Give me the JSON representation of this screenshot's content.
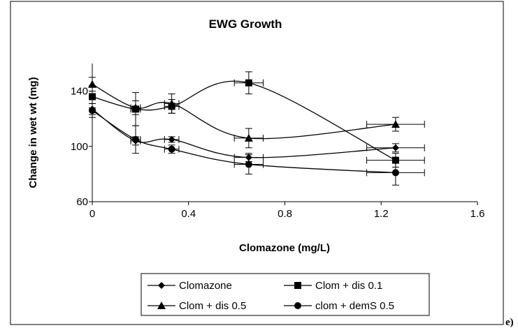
{
  "panel_label": "e)",
  "chart_data": {
    "type": "line",
    "title": "EWG Growth",
    "xlabel": "Clomazone (mg/L)",
    "ylabel": "Change in wet wt (mg)",
    "xlim": [
      0,
      1.6
    ],
    "ylim": [
      60,
      160
    ],
    "x_ticks": [
      0,
      0.4,
      0.8,
      1.2,
      1.6
    ],
    "x_tick_labels": [
      "0",
      "0.4",
      "0.8",
      "1.2",
      "1.6"
    ],
    "y_ticks": [
      60,
      100,
      140
    ],
    "y_tick_labels": [
      "60",
      "100",
      "140"
    ],
    "grid": false,
    "legend_position": "bottom",
    "series": [
      {
        "name": "Clomazone",
        "marker": "diamond",
        "x": [
          0,
          0.18,
          0.33,
          0.65,
          1.26
        ],
        "y": [
          127,
          104,
          105,
          92,
          99
        ],
        "y_err": [
          4,
          3,
          2,
          3,
          3
        ],
        "x_err": [
          0,
          0.02,
          0.03,
          0.06,
          0.12
        ]
      },
      {
        "name": "Clom + dis 0.1",
        "marker": "square",
        "x": [
          0,
          0.18,
          0.33,
          0.65,
          1.26
        ],
        "y": [
          136,
          127,
          129,
          146,
          90
        ],
        "y_err": [
          8,
          12,
          5,
          8,
          5
        ],
        "x_err": [
          0,
          0.02,
          0.03,
          0.06,
          0.12
        ]
      },
      {
        "name": "Clom + dis 0.5",
        "marker": "triangle",
        "x": [
          0,
          0.18,
          0.33,
          0.65,
          1.26
        ],
        "y": [
          145,
          128,
          131,
          106,
          116
        ],
        "y_err": [
          5,
          5,
          7,
          7,
          5
        ],
        "x_err": [
          0,
          0.02,
          0.03,
          0.06,
          0.12
        ]
      },
      {
        "name": "clom + demS 0.5",
        "marker": "circle",
        "x": [
          0,
          0.18,
          0.33,
          0.65,
          1.26
        ],
        "y": [
          126,
          105,
          98,
          87,
          81
        ],
        "y_err": [
          5,
          10,
          3,
          7,
          9
        ],
        "x_err": [
          0,
          0.02,
          0.03,
          0.06,
          0.12
        ]
      }
    ]
  }
}
